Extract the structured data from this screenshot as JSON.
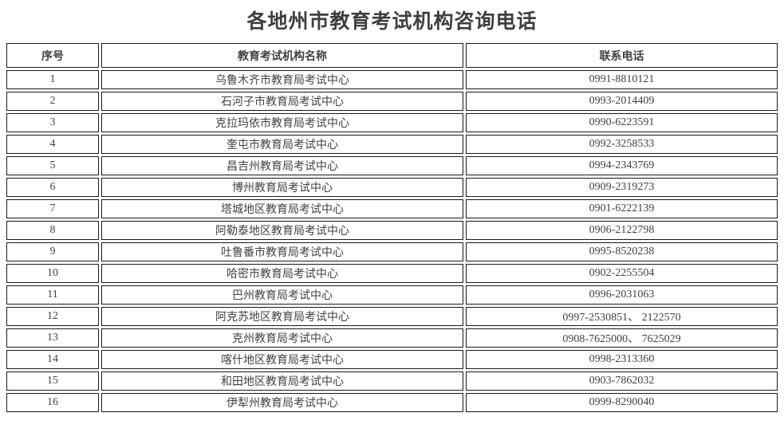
{
  "page": {
    "title": "各地州市教育考试机构咨询电话"
  },
  "table": {
    "headers": [
      "序号",
      "教育考试机构名称",
      "联系电话"
    ],
    "rows": [
      {
        "no": "1",
        "name": "乌鲁木齐市教育局考试中心",
        "phone": "0991-8810121"
      },
      {
        "no": "2",
        "name": "石河子市教育局考试中心",
        "phone": "0993-2014409"
      },
      {
        "no": "3",
        "name": "克拉玛依市教育局考试中心",
        "phone": "0990-6223591"
      },
      {
        "no": "4",
        "name": "奎屯市教育局考试中心",
        "phone": "0992-3258533"
      },
      {
        "no": "5",
        "name": "昌吉州教育局考试中心",
        "phone": "0994-2343769"
      },
      {
        "no": "6",
        "name": "博州教育局考试中心",
        "phone": "0909-2319273"
      },
      {
        "no": "7",
        "name": "塔城地区教育局考试中心",
        "phone": "0901-6222139"
      },
      {
        "no": "8",
        "name": "阿勒泰地区教育局考试中心",
        "phone": "0906-2122798"
      },
      {
        "no": "9",
        "name": "吐鲁番市教育局考试中心",
        "phone": "0995-8520238"
      },
      {
        "no": "10",
        "name": "哈密市教育局考试中心",
        "phone": "0902-2255504"
      },
      {
        "no": "11",
        "name": "巴州教育局考试中心",
        "phone": "0996-2031063"
      },
      {
        "no": "12",
        "name": "阿克苏地区教育局考试中心",
        "phone": "0997-2530851、 2122570"
      },
      {
        "no": "13",
        "name": "克州教育局考试中心",
        "phone": "0908-7625000、 7625029"
      },
      {
        "no": "14",
        "name": "喀什地区教育局考试中心",
        "phone": "0998-2313360"
      },
      {
        "no": "15",
        "name": "和田地区教育局考试中心",
        "phone": "0903-7862032"
      },
      {
        "no": "16",
        "name": "伊犁州教育局考试中心",
        "phone": "0999-8290040"
      }
    ]
  },
  "colors": {
    "text": "#424242",
    "border": "#1a1a1a",
    "background": "#ffffff"
  }
}
